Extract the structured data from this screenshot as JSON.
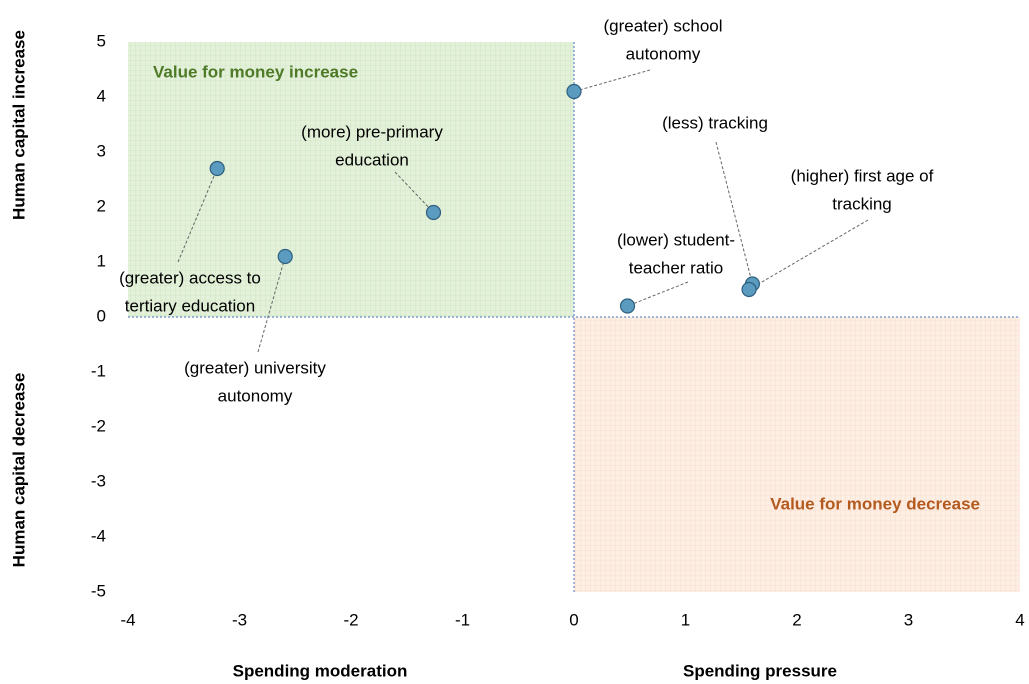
{
  "chart_data": {
    "type": "scatter",
    "x": [
      0,
      -1.26,
      -3.2,
      -2.59,
      0.48,
      1.6,
      1.57
    ],
    "y": [
      4.1,
      1.9,
      2.7,
      1.1,
      0.2,
      0.6,
      0.5
    ],
    "point_labels": [
      [
        "(greater) school",
        "autonomy"
      ],
      [
        "(more) pre-primary",
        "education"
      ],
      [
        "(greater) access to",
        "tertiary education"
      ],
      [
        "(greater) university",
        "autonomy"
      ],
      [
        "(lower) student-",
        "teacher ratio"
      ],
      [
        "(less) tracking"
      ],
      [
        "(higher) first age of",
        "tracking"
      ]
    ],
    "color": "#5b9bbf",
    "xlim": [
      -4,
      4
    ],
    "xticks": [
      -4,
      -3,
      -2,
      -1,
      0,
      1,
      2,
      3,
      4
    ],
    "ylim": [
      -5,
      5
    ],
    "yticks": [
      -5,
      -4,
      -3,
      -2,
      -1,
      0,
      1,
      2,
      3,
      4,
      5
    ],
    "x_axis_labels": [
      "Spending moderation",
      "Spending pressure"
    ],
    "y_axis_labels": [
      "Human capital increase",
      "Human capital decrease"
    ],
    "region_labels": [
      "Value for money increase",
      "Value for money decrease"
    ]
  }
}
